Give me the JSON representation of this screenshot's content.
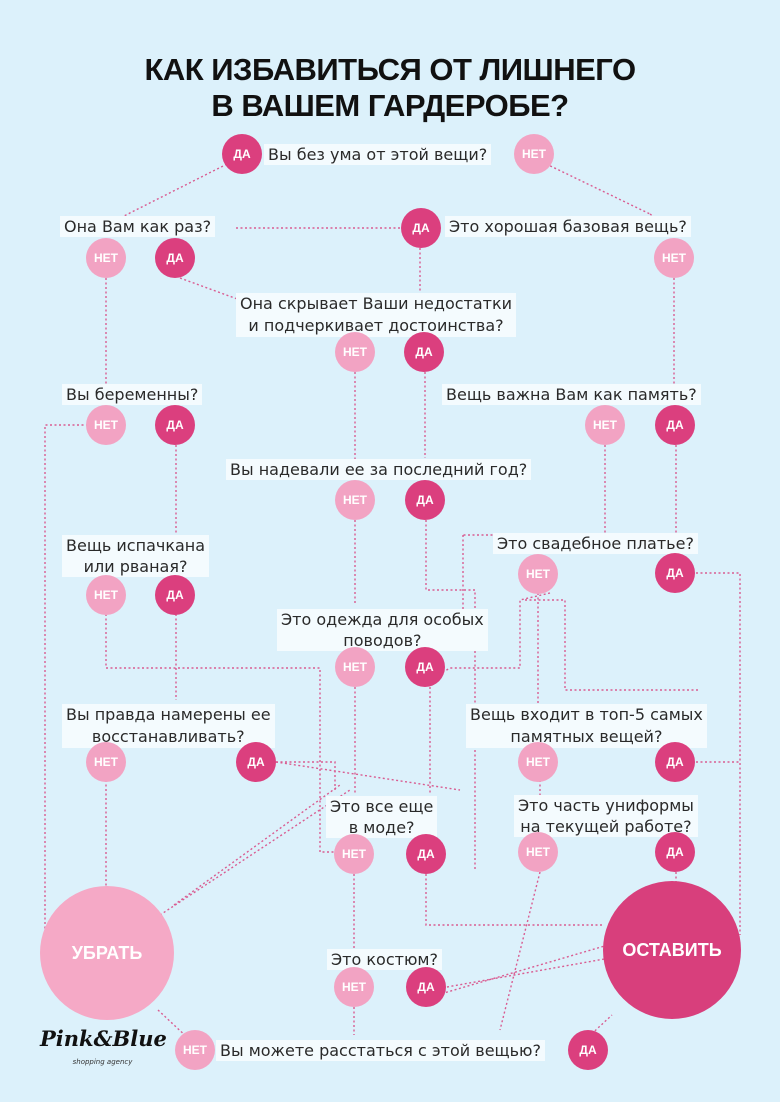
{
  "title": {
    "line1": "КАК ИЗБАВИТЬСЯ ОТ ЛИШНЕГО",
    "line2": "В ВАШЕМ ГАРДЕРОБЕ?"
  },
  "labels": {
    "yes": "ДА",
    "no": "НЕТ"
  },
  "questions": {
    "crazy": "Вы без ума от этой вещи?",
    "fits": "Она Вам как раз?",
    "basic": "Это хорошая базовая вещь?",
    "flatters_1": "Она скрывает Ваши недостатки",
    "flatters_2": "и подчеркивает достоинства?",
    "pregnant": "Вы беременны?",
    "memory": "Вещь важна Вам как память?",
    "worn_year": "Вы надевали ее за последний год?",
    "damaged_1": "Вещь испачкана",
    "damaged_2": "или рваная?",
    "wedding": "Это свадебное платье?",
    "special_1": "Это одежда для особых",
    "special_2": "поводов?",
    "restore_1": "Вы правда намерены ее",
    "restore_2": "восстанавливать?",
    "top5_1": "Вещь входит в топ-5 самых",
    "top5_2": "памятных вещей?",
    "fashion_1": "Это все еще",
    "fashion_2": "в моде?",
    "uniform_1": "Это часть униформы",
    "uniform_2": "на текущей работе?",
    "suit": "Это костюм?",
    "part": "Вы можете расстаться с этой вещью?"
  },
  "outcomes": {
    "remove": "УБРАТЬ",
    "keep": "ОСТАВИТЬ"
  },
  "logo": {
    "name": "Pink&Blue",
    "tagline": "shopping agency"
  },
  "colors": {
    "background": "#dcf1fb",
    "yes": "#db3f7e",
    "no": "#f2a3c3",
    "line": "#d94c86"
  }
}
